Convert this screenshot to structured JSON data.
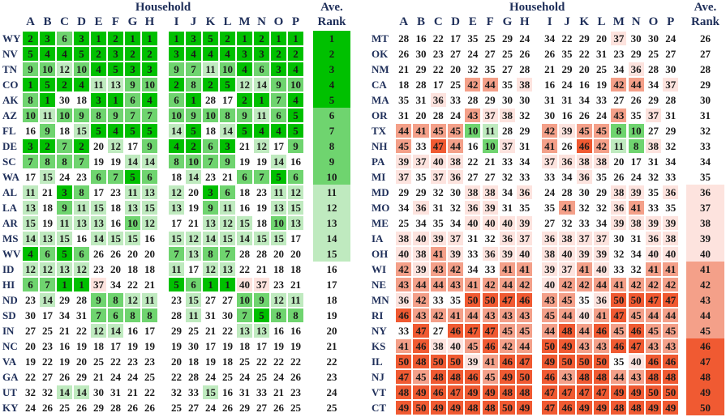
{
  "cell_colors": [
    {
      "max": 5,
      "color": "#00c000"
    },
    {
      "max": 10,
      "color": "#6fd46f"
    },
    {
      "max": 15,
      "color": "#bfeabf"
    },
    {
      "max": 35,
      "color": "#ffffff"
    },
    {
      "max": 40,
      "color": "#fde3de"
    },
    {
      "max": 45,
      "color": "#f4a089"
    },
    {
      "max": 50,
      "color": "#f05a32"
    }
  ],
  "tables": [
    {
      "header": "Household",
      "rank_header": [
        "Ave.",
        "Rank"
      ],
      "columns": [
        "A",
        "B",
        "C",
        "D",
        "E",
        "F",
        "G",
        "H",
        "I",
        "J",
        "K",
        "L",
        "M",
        "N",
        "O",
        "P"
      ],
      "rows": [
        {
          "state": "WY",
          "values": [
            2,
            3,
            6,
            3,
            1,
            2,
            1,
            1,
            1,
            3,
            5,
            2,
            1,
            2,
            1,
            1
          ],
          "rank": 1
        },
        {
          "state": "NV",
          "values": [
            5,
            4,
            4,
            5,
            2,
            3,
            2,
            2,
            3,
            4,
            4,
            4,
            3,
            3,
            2,
            2
          ],
          "rank": 2
        },
        {
          "state": "TN",
          "values": [
            9,
            10,
            12,
            10,
            4,
            5,
            3,
            3,
            9,
            7,
            11,
            10,
            4,
            6,
            3,
            4
          ],
          "rank": 3
        },
        {
          "state": "CO",
          "values": [
            1,
            5,
            2,
            4,
            11,
            13,
            9,
            10,
            2,
            8,
            2,
            5,
            12,
            14,
            9,
            10
          ],
          "rank": 4
        },
        {
          "state": "AK",
          "values": [
            8,
            1,
            30,
            18,
            3,
            1,
            6,
            4,
            6,
            1,
            28,
            17,
            2,
            1,
            7,
            4
          ],
          "rank": 5
        },
        {
          "state": "AZ",
          "values": [
            10,
            11,
            10,
            9,
            8,
            9,
            7,
            7,
            10,
            9,
            10,
            8,
            9,
            11,
            6,
            5
          ],
          "rank": 6
        },
        {
          "state": "FL",
          "values": [
            16,
            9,
            18,
            15,
            5,
            4,
            5,
            5,
            14,
            5,
            18,
            14,
            5,
            4,
            4,
            5
          ],
          "rank": 7
        },
        {
          "state": "DE",
          "values": [
            3,
            2,
            7,
            2,
            20,
            12,
            17,
            9,
            4,
            2,
            6,
            3,
            21,
            12,
            17,
            9
          ],
          "rank": 8
        },
        {
          "state": "SC",
          "values": [
            7,
            8,
            8,
            7,
            19,
            19,
            14,
            14,
            8,
            10,
            7,
            9,
            19,
            19,
            14,
            16
          ],
          "rank": 9
        },
        {
          "state": "WA",
          "values": [
            17,
            15,
            24,
            23,
            6,
            7,
            5,
            6,
            18,
            14,
            23,
            21,
            6,
            7,
            5,
            6
          ],
          "rank": 10
        },
        {
          "state": "AL",
          "values": [
            11,
            21,
            3,
            8,
            17,
            23,
            11,
            13,
            12,
            20,
            3,
            6,
            18,
            23,
            11,
            12
          ],
          "rank": 11
        },
        {
          "state": "LA",
          "values": [
            13,
            18,
            9,
            11,
            15,
            18,
            13,
            15,
            13,
            19,
            9,
            11,
            16,
            19,
            13,
            15
          ],
          "rank": 12
        },
        {
          "state": "AR",
          "values": [
            15,
            19,
            11,
            13,
            13,
            16,
            10,
            12,
            17,
            21,
            13,
            12,
            15,
            18,
            10,
            13
          ],
          "rank": 13
        },
        {
          "state": "MS",
          "values": [
            14,
            13,
            15,
            16,
            14,
            15,
            15,
            16,
            15,
            12,
            14,
            15,
            14,
            15,
            15,
            17
          ],
          "rank": 14
        },
        {
          "state": "WV",
          "values": [
            4,
            6,
            5,
            6,
            26,
            26,
            20,
            20,
            7,
            13,
            8,
            7,
            28,
            28,
            20,
            20
          ],
          "rank": 15
        },
        {
          "state": "ID",
          "values": [
            12,
            12,
            13,
            12,
            23,
            20,
            18,
            18,
            11,
            17,
            12,
            13,
            22,
            21,
            18,
            18
          ],
          "rank": 16
        },
        {
          "state": "HI",
          "values": [
            6,
            7,
            1,
            1,
            37,
            34,
            22,
            21,
            5,
            6,
            1,
            1,
            40,
            37,
            23,
            21
          ],
          "rank": 17
        },
        {
          "state": "ND",
          "values": [
            23,
            14,
            29,
            28,
            9,
            8,
            12,
            11,
            23,
            15,
            27,
            27,
            10,
            9,
            12,
            11
          ],
          "rank": 18
        },
        {
          "state": "SD",
          "values": [
            30,
            17,
            34,
            31,
            7,
            6,
            8,
            8,
            28,
            11,
            31,
            30,
            7,
            5,
            8,
            8
          ],
          "rank": 19
        },
        {
          "state": "IN",
          "values": [
            27,
            25,
            21,
            22,
            12,
            14,
            16,
            17,
            29,
            25,
            21,
            22,
            13,
            13,
            16,
            16
          ],
          "rank": 20
        },
        {
          "state": "NC",
          "values": [
            20,
            23,
            16,
            19,
            18,
            17,
            19,
            19,
            19,
            30,
            17,
            19,
            18,
            17,
            19,
            19
          ],
          "rank": 21
        },
        {
          "state": "VA",
          "values": [
            19,
            22,
            19,
            20,
            25,
            22,
            23,
            23,
            20,
            18,
            19,
            18,
            25,
            22,
            22,
            22
          ],
          "rank": 22
        },
        {
          "state": "GA",
          "values": [
            22,
            27,
            26,
            29,
            21,
            24,
            24,
            25,
            22,
            28,
            24,
            25,
            24,
            25,
            24,
            26
          ],
          "rank": 23
        },
        {
          "state": "UT",
          "values": [
            32,
            32,
            14,
            14,
            30,
            31,
            21,
            22,
            32,
            33,
            15,
            16,
            31,
            33,
            21,
            23
          ],
          "rank": 24
        },
        {
          "state": "KY",
          "values": [
            24,
            26,
            25,
            26,
            29,
            28,
            26,
            26,
            25,
            27,
            24,
            26,
            29,
            27,
            26,
            25
          ],
          "rank": 25
        }
      ]
    },
    {
      "header": "Household",
      "rank_header": [
        "Ave.",
        "Rank"
      ],
      "columns": [
        "A",
        "B",
        "C",
        "D",
        "E",
        "F",
        "G",
        "H",
        "I",
        "J",
        "K",
        "L",
        "M",
        "N",
        "O",
        "P"
      ],
      "rows": [
        {
          "state": "MT",
          "values": [
            28,
            16,
            22,
            17,
            35,
            25,
            29,
            24,
            34,
            22,
            29,
            20,
            37,
            30,
            30,
            24
          ],
          "rank": 26
        },
        {
          "state": "OK",
          "values": [
            26,
            30,
            23,
            27,
            24,
            27,
            25,
            26,
            26,
            35,
            22,
            31,
            23,
            29,
            25,
            27
          ],
          "rank": 27
        },
        {
          "state": "NM",
          "values": [
            21,
            29,
            22,
            20,
            32,
            35,
            27,
            28,
            21,
            29,
            20,
            25,
            34,
            36,
            28,
            30
          ],
          "rank": 28
        },
        {
          "state": "CA",
          "values": [
            18,
            28,
            17,
            25,
            42,
            44,
            35,
            38,
            16,
            24,
            16,
            19,
            42,
            44,
            34,
            37
          ],
          "rank": 29
        },
        {
          "state": "MA",
          "values": [
            35,
            31,
            36,
            33,
            28,
            29,
            30,
            30,
            31,
            31,
            34,
            33,
            27,
            26,
            29,
            28
          ],
          "rank": 30
        },
        {
          "state": "OR",
          "values": [
            31,
            20,
            28,
            24,
            43,
            37,
            38,
            32,
            30,
            16,
            26,
            24,
            43,
            35,
            37,
            31
          ],
          "rank": 31
        },
        {
          "state": "TX",
          "values": [
            44,
            41,
            45,
            45,
            10,
            11,
            28,
            29,
            42,
            39,
            45,
            45,
            8,
            10,
            27,
            29
          ],
          "rank": 32
        },
        {
          "state": "NH",
          "values": [
            45,
            33,
            47,
            44,
            16,
            10,
            37,
            31,
            41,
            26,
            46,
            42,
            11,
            8,
            38,
            32
          ],
          "rank": 33
        },
        {
          "state": "PA",
          "values": [
            39,
            37,
            40,
            38,
            22,
            21,
            33,
            34,
            37,
            36,
            38,
            38,
            20,
            17,
            31,
            34
          ],
          "rank": 34
        },
        {
          "state": "MI",
          "values": [
            37,
            35,
            37,
            36,
            27,
            27,
            32,
            33,
            33,
            34,
            36,
            35,
            26,
            24,
            32,
            33
          ],
          "rank": 35
        },
        {
          "state": "MD",
          "values": [
            29,
            29,
            32,
            30,
            38,
            38,
            34,
            36,
            24,
            28,
            30,
            29,
            38,
            39,
            35,
            36
          ],
          "rank": 36
        },
        {
          "state": "MO",
          "values": [
            34,
            36,
            31,
            32,
            36,
            39,
            31,
            35,
            35,
            41,
            32,
            32,
            36,
            41,
            33,
            35
          ],
          "rank": 37
        },
        {
          "state": "ME",
          "values": [
            25,
            34,
            35,
            34,
            40,
            40,
            40,
            39,
            27,
            32,
            33,
            34,
            39,
            38,
            39,
            39
          ],
          "rank": 38
        },
        {
          "state": "IA",
          "values": [
            38,
            40,
            39,
            37,
            31,
            32,
            36,
            37,
            36,
            38,
            37,
            37,
            30,
            31,
            36,
            38
          ],
          "rank": 39
        },
        {
          "state": "OH",
          "values": [
            40,
            38,
            41,
            39,
            33,
            36,
            39,
            40,
            38,
            40,
            39,
            39,
            32,
            34,
            40,
            40
          ],
          "rank": 40
        },
        {
          "state": "WI",
          "values": [
            42,
            39,
            43,
            42,
            34,
            33,
            41,
            41,
            39,
            37,
            41,
            40,
            33,
            32,
            41,
            41
          ],
          "rank": 41
        },
        {
          "state": "NE",
          "values": [
            43,
            44,
            44,
            43,
            41,
            42,
            44,
            42,
            40,
            42,
            42,
            44,
            41,
            42,
            42,
            42
          ],
          "rank": 42
        },
        {
          "state": "MN",
          "values": [
            36,
            42,
            33,
            35,
            50,
            50,
            47,
            46,
            43,
            45,
            35,
            36,
            50,
            50,
            47,
            47
          ],
          "rank": 43
        },
        {
          "state": "RI",
          "values": [
            46,
            43,
            42,
            41,
            44,
            43,
            43,
            43,
            45,
            44,
            40,
            41,
            47,
            45,
            44,
            44
          ],
          "rank": 44
        },
        {
          "state": "NY",
          "values": [
            33,
            47,
            27,
            46,
            47,
            47,
            45,
            45,
            44,
            48,
            44,
            46,
            45,
            46,
            45,
            45
          ],
          "rank": 45
        },
        {
          "state": "KS",
          "values": [
            41,
            46,
            38,
            40,
            45,
            46,
            42,
            44,
            50,
            49,
            43,
            43,
            46,
            47,
            43,
            43
          ],
          "rank": 46
        },
        {
          "state": "IL",
          "values": [
            50,
            48,
            50,
            50,
            39,
            41,
            46,
            47,
            49,
            50,
            50,
            50,
            35,
            40,
            46,
            46
          ],
          "rank": 47
        },
        {
          "state": "NJ",
          "values": [
            47,
            45,
            48,
            48,
            46,
            45,
            49,
            50,
            46,
            43,
            48,
            48,
            44,
            43,
            48,
            48
          ],
          "rank": 48
        },
        {
          "state": "VT",
          "values": [
            48,
            49,
            46,
            47,
            49,
            49,
            48,
            48,
            47,
            47,
            47,
            47,
            49,
            49,
            50,
            50
          ],
          "rank": 49
        },
        {
          "state": "CT",
          "values": [
            49,
            50,
            49,
            49,
            48,
            48,
            50,
            49,
            47,
            46,
            49,
            49,
            48,
            48,
            49,
            49
          ],
          "rank": 50
        }
      ]
    }
  ]
}
